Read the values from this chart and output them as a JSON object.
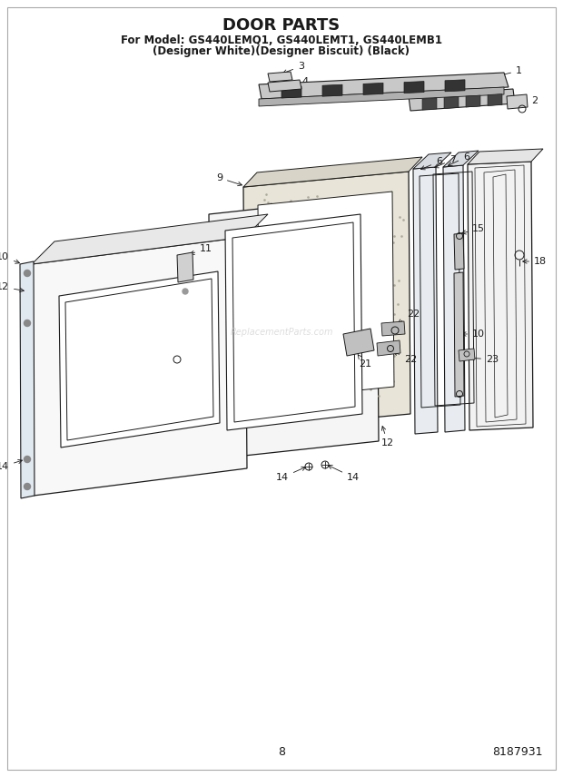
{
  "title": "DOOR PARTS",
  "subtitle_line1": "For Model: GS440LEMQ1, GS440LEMT1, GS440LEMB1",
  "subtitle_line2": "(Designer White)(Designer Biscuit) (Black)",
  "page_number": "8",
  "doc_number": "8187931",
  "background_color": "#ffffff",
  "title_fontsize": 13,
  "subtitle_fontsize": 8.5,
  "footer_fontsize": 9,
  "line_color": "#1a1a1a",
  "label_fontsize": 8,
  "watermark": "ReplacementParts.com"
}
